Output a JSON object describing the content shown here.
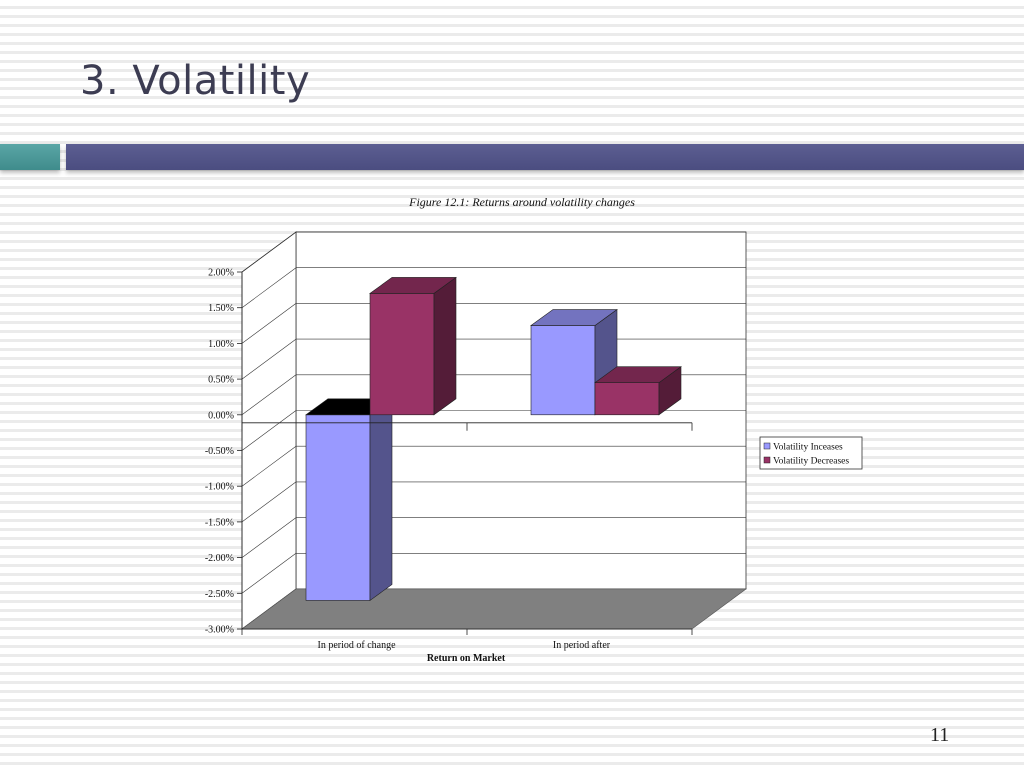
{
  "slide": {
    "title": "3. Volatility",
    "page_number": "11"
  },
  "colors": {
    "series_increase": "#9999ff",
    "series_decrease": "#993366",
    "floor": "#808080",
    "accent_teal": "#4a9999",
    "accent_navy": "#535587"
  },
  "chart_data": {
    "type": "bar",
    "title": "Figure 12.1: Returns around volatility changes",
    "xlabel": "Return on Market",
    "ylabel": "",
    "categories": [
      "In period of change",
      "In period after"
    ],
    "series": [
      {
        "name": "Volatility Inceases",
        "values": [
          -2.6,
          1.25
        ]
      },
      {
        "name": "Volatility Decreases",
        "values": [
          1.7,
          0.45
        ]
      }
    ],
    "ylim": [
      -3.0,
      2.0
    ],
    "yticks": [
      "2.00%",
      "1.50%",
      "1.00%",
      "0.50%",
      "0.00%",
      "-0.50%",
      "-1.00%",
      "-1.50%",
      "-2.00%",
      "-2.50%",
      "-3.00%"
    ],
    "grid": true,
    "legend": "right",
    "three_d": true
  }
}
